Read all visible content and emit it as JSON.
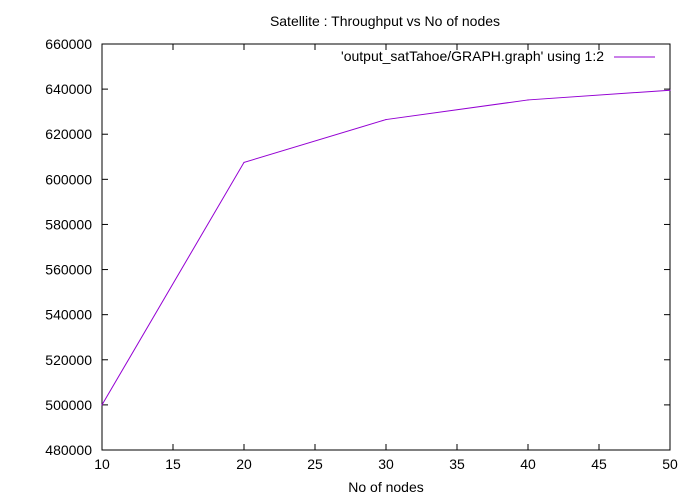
{
  "chart_data": {
    "type": "line",
    "title": "Satellite : Throughput vs No of nodes",
    "xlabel": "No of nodes",
    "ylabel": "",
    "xlim": [
      10,
      50
    ],
    "ylim": [
      480000,
      660000
    ],
    "x_ticks": [
      "10",
      "15",
      "20",
      "25",
      "30",
      "35",
      "40",
      "45",
      "50"
    ],
    "y_ticks": [
      "480000",
      "500000",
      "520000",
      "540000",
      "560000",
      "580000",
      "600000",
      "620000",
      "640000",
      "660000"
    ],
    "grid": false,
    "legend_position": "top-right",
    "series": [
      {
        "name": "'output_satTahoe/GRAPH.graph' using 1:2",
        "color": "#9400d3",
        "x": [
          10,
          20,
          30,
          40,
          50
        ],
        "y": [
          500000,
          607500,
          626500,
          635200,
          639500
        ]
      }
    ]
  }
}
